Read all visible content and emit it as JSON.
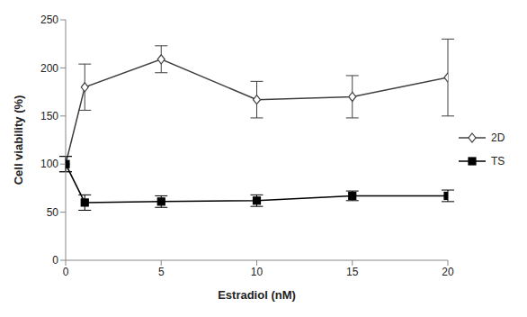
{
  "chart_data": {
    "type": "line",
    "x_label": "Estradiol (nM)",
    "y_label": "Cell viability (%)",
    "x": [
      0,
      1,
      5,
      10,
      15,
      20
    ],
    "series": [
      {
        "name": "2D",
        "color": "#404040",
        "marker": "open-diamond",
        "values": [
          100,
          180,
          209,
          167,
          170,
          190
        ],
        "errors": [
          8,
          24,
          14,
          19,
          22,
          40
        ]
      },
      {
        "name": "TS",
        "color": "#000000",
        "marker": "square",
        "values": [
          100,
          60,
          61,
          62,
          67,
          67
        ],
        "errors": [
          8,
          8,
          6,
          6,
          5,
          6
        ]
      }
    ],
    "xlim": [
      0,
      20
    ],
    "xticks": [
      0,
      5,
      10,
      15,
      20
    ],
    "ylim": [
      0,
      250
    ],
    "yticks": [
      0,
      50,
      100,
      150,
      200,
      250
    ],
    "grid": false,
    "legend": "right"
  }
}
